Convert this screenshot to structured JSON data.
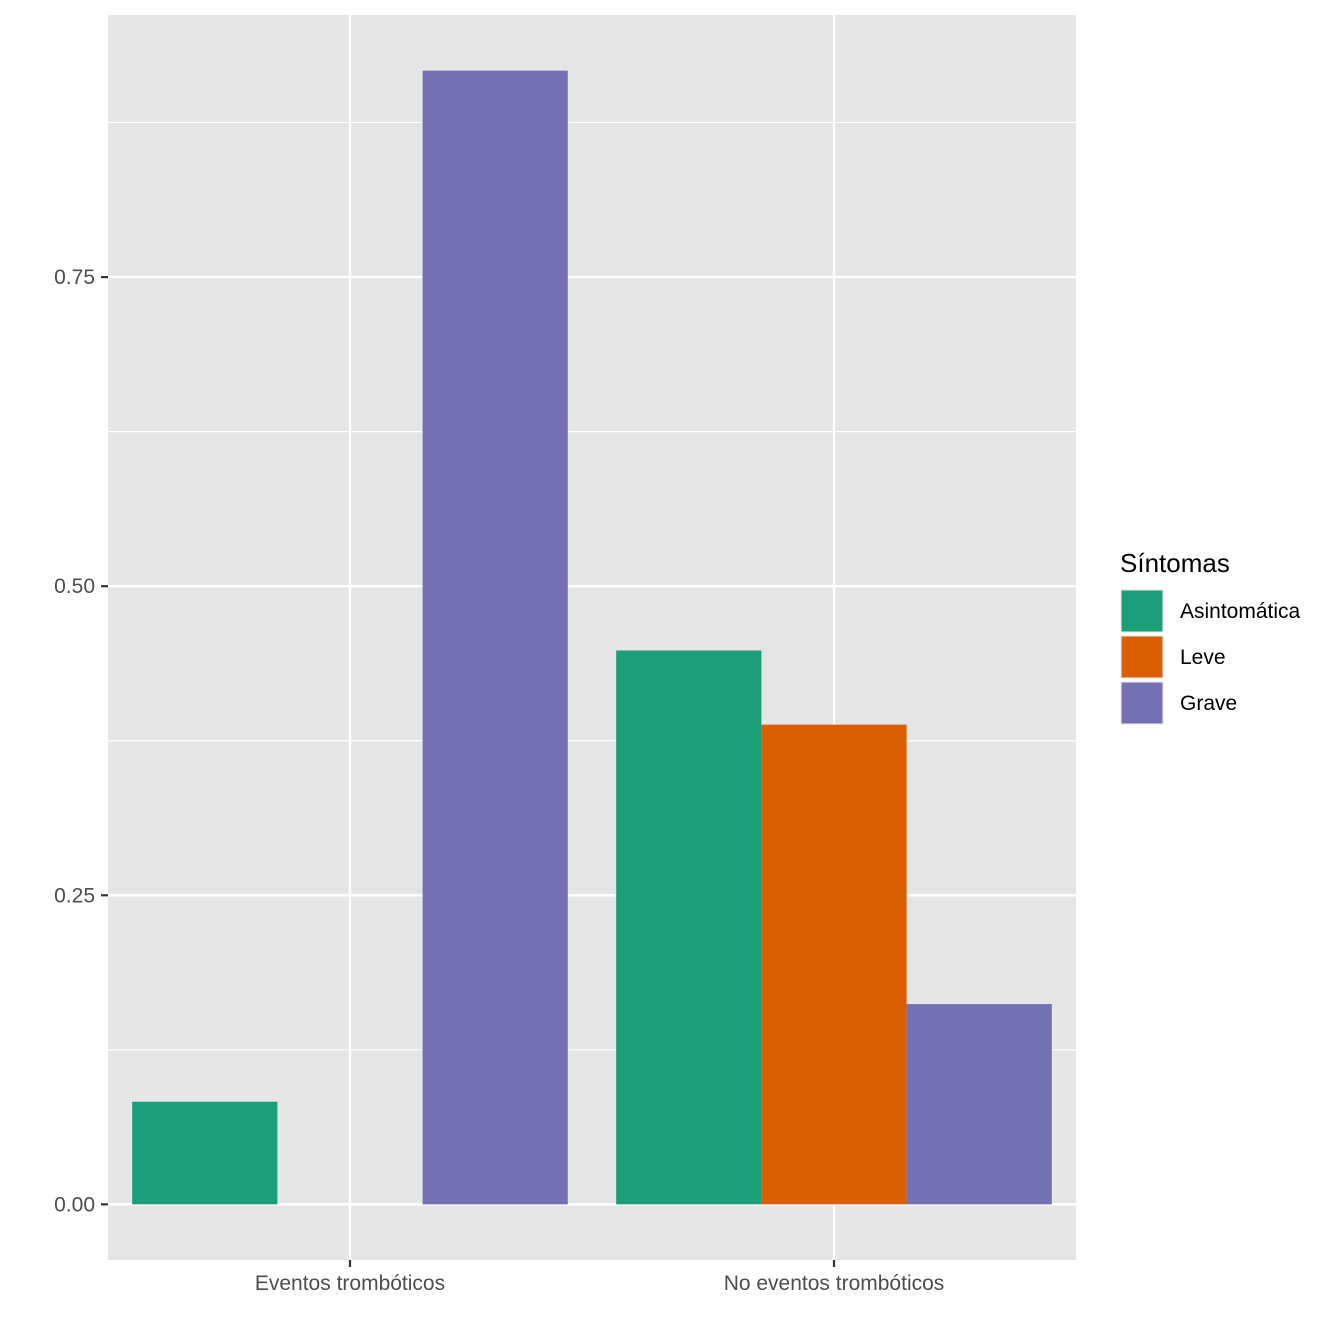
{
  "chart_data": {
    "type": "bar",
    "title": "",
    "xlabel": "",
    "ylabel": "",
    "categories": [
      "Eventos trombóticos",
      "No eventos trombóticos"
    ],
    "series": [
      {
        "name": "Asintomática",
        "color": "#1B9E77",
        "values": [
          0.083,
          0.448
        ]
      },
      {
        "name": "Leve",
        "color": "#D95F02",
        "values": [
          0.0,
          0.388
        ]
      },
      {
        "name": "Grave",
        "color": "#7570B3",
        "values": [
          0.917,
          0.162
        ]
      }
    ],
    "ylim": [
      -0.045,
      0.962
    ],
    "yticks": [
      0.0,
      0.25,
      0.5,
      0.75
    ],
    "ytick_labels": [
      "0.00",
      "0.25",
      "0.50",
      "0.75"
    ],
    "grid": true,
    "panel_background": "#E5E5E5",
    "legend": {
      "title": "Síntomas",
      "position": "right"
    }
  }
}
